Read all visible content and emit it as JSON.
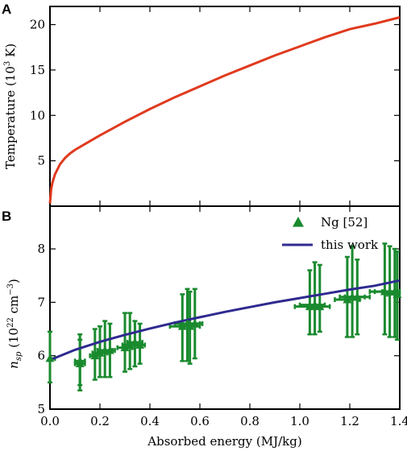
{
  "chart_data": [
    {
      "panel": "A",
      "type": "line",
      "xlabel": "",
      "ylabel": "Temperature (10³ K)",
      "ylabel_main": "Temperature (10",
      "ylabel_sup": "3",
      "ylabel_tail": " K)",
      "xlim": [
        0,
        1.4
      ],
      "ylim": [
        0,
        22
      ],
      "yticks": [
        5,
        10,
        15,
        20
      ],
      "xticks": [
        0.0,
        0.2,
        0.4,
        0.6,
        0.8,
        1.0,
        1.2,
        1.4
      ],
      "series": [
        {
          "color": "#e03a1e",
          "x": [
            0.0,
            0.005,
            0.01,
            0.02,
            0.04,
            0.06,
            0.08,
            0.1,
            0.15,
            0.2,
            0.3,
            0.4,
            0.5,
            0.6,
            0.7,
            0.8,
            0.9,
            1.0,
            1.1,
            1.2,
            1.3,
            1.4
          ],
          "y": [
            0.3,
            1.9,
            2.6,
            3.5,
            4.6,
            5.3,
            5.8,
            6.2,
            7.0,
            7.8,
            9.3,
            10.7,
            12.0,
            13.2,
            14.4,
            15.5,
            16.6,
            17.6,
            18.6,
            19.5,
            20.1,
            20.8
          ]
        }
      ]
    },
    {
      "panel": "B",
      "type": "scatter",
      "xlabel": "Absorbed energy (MJ/kg)",
      "ylabel": "n_sp (10²² cm⁻³)",
      "ylabel_n": "n",
      "ylabel_sub": "sp",
      "ylabel_main": " (10",
      "ylabel_sup1": "22",
      "ylabel_mid": " cm",
      "ylabel_sup2": "−3",
      "ylabel_tail": ")",
      "xlim": [
        0,
        1.4
      ],
      "ylim": [
        5,
        8.8
      ],
      "yticks": [
        5,
        6,
        7,
        8
      ],
      "xticks": [
        0.0,
        0.2,
        0.4,
        0.6,
        0.8,
        1.0,
        1.2,
        1.4
      ],
      "xtick_labels": [
        "0.0",
        "0.2",
        "0.4",
        "0.6",
        "0.8",
        "1.0",
        "1.2",
        "1.4"
      ],
      "legend_position": "top-right",
      "series": [
        {
          "name": "Ng [52]",
          "type": "scatter",
          "marker": "triangle",
          "color": "#1a8a2e",
          "points": [
            {
              "x": 0.0,
              "y": 5.95,
              "ylo": 5.5,
              "yhi": 6.45,
              "xlo": 0.0,
              "xhi": 0.02
            },
            {
              "x": 0.12,
              "y": 5.9,
              "ylo": 5.45,
              "yhi": 6.4,
              "xlo": 0.1,
              "xhi": 0.14
            },
            {
              "x": 0.12,
              "y": 5.85,
              "ylo": 5.35,
              "yhi": 6.3,
              "xlo": 0.1,
              "xhi": 0.14
            },
            {
              "x": 0.18,
              "y": 6.0,
              "ylo": 5.55,
              "yhi": 6.5,
              "xlo": 0.16,
              "xhi": 0.2
            },
            {
              "x": 0.2,
              "y": 6.05,
              "ylo": 5.6,
              "yhi": 6.55,
              "xlo": 0.17,
              "xhi": 0.23
            },
            {
              "x": 0.22,
              "y": 6.1,
              "ylo": 5.6,
              "yhi": 6.65,
              "xlo": 0.19,
              "xhi": 0.25
            },
            {
              "x": 0.24,
              "y": 6.1,
              "ylo": 5.6,
              "yhi": 6.6,
              "xlo": 0.22,
              "xhi": 0.26
            },
            {
              "x": 0.3,
              "y": 6.15,
              "ylo": 5.7,
              "yhi": 6.8,
              "xlo": 0.27,
              "xhi": 0.33
            },
            {
              "x": 0.32,
              "y": 6.2,
              "ylo": 5.75,
              "yhi": 6.8,
              "xlo": 0.29,
              "xhi": 0.35
            },
            {
              "x": 0.34,
              "y": 6.25,
              "ylo": 5.8,
              "yhi": 6.65,
              "xlo": 0.31,
              "xhi": 0.37
            },
            {
              "x": 0.36,
              "y": 6.2,
              "ylo": 5.85,
              "yhi": 6.6,
              "xlo": 0.33,
              "xhi": 0.38
            },
            {
              "x": 0.53,
              "y": 6.55,
              "ylo": 5.9,
              "yhi": 7.15,
              "xlo": 0.48,
              "xhi": 0.58
            },
            {
              "x": 0.55,
              "y": 6.6,
              "ylo": 5.9,
              "yhi": 7.25,
              "xlo": 0.5,
              "xhi": 0.6
            },
            {
              "x": 0.56,
              "y": 6.55,
              "ylo": 5.85,
              "yhi": 7.2,
              "xlo": 0.52,
              "xhi": 0.6
            },
            {
              "x": 0.58,
              "y": 6.6,
              "ylo": 5.95,
              "yhi": 7.25,
              "xlo": 0.55,
              "xhi": 0.61
            },
            {
              "x": 1.04,
              "y": 6.92,
              "ylo": 6.4,
              "yhi": 7.6,
              "xlo": 0.98,
              "xhi": 1.09
            },
            {
              "x": 1.06,
              "y": 6.95,
              "ylo": 6.4,
              "yhi": 7.75,
              "xlo": 1.0,
              "xhi": 1.1
            },
            {
              "x": 1.08,
              "y": 6.92,
              "ylo": 6.45,
              "yhi": 7.7,
              "xlo": 1.03,
              "xhi": 1.12
            },
            {
              "x": 1.19,
              "y": 7.05,
              "ylo": 6.35,
              "yhi": 7.85,
              "xlo": 1.14,
              "xhi": 1.24
            },
            {
              "x": 1.21,
              "y": 7.1,
              "ylo": 6.35,
              "yhi": 8.05,
              "xlo": 1.16,
              "xhi": 1.26
            },
            {
              "x": 1.23,
              "y": 7.1,
              "ylo": 6.4,
              "yhi": 7.8,
              "xlo": 1.18,
              "xhi": 1.28
            },
            {
              "x": 1.34,
              "y": 7.2,
              "ylo": 6.4,
              "yhi": 8.1,
              "xlo": 1.28,
              "xhi": 1.38
            },
            {
              "x": 1.36,
              "y": 7.2,
              "ylo": 6.35,
              "yhi": 8.05,
              "xlo": 1.3,
              "xhi": 1.4
            },
            {
              "x": 1.38,
              "y": 7.2,
              "ylo": 6.35,
              "yhi": 8.0,
              "xlo": 1.33,
              "xhi": 1.4
            },
            {
              "x": 1.39,
              "y": 7.15,
              "ylo": 6.3,
              "yhi": 7.95,
              "xlo": 1.35,
              "xhi": 1.4
            }
          ]
        },
        {
          "name": "this work",
          "type": "line",
          "color": "#2f2a8f",
          "x": [
            0.0,
            0.1,
            0.2,
            0.3,
            0.4,
            0.5,
            0.6,
            0.7,
            0.8,
            0.9,
            1.0,
            1.1,
            1.2,
            1.3,
            1.4
          ],
          "y": [
            5.92,
            6.11,
            6.26,
            6.39,
            6.51,
            6.62,
            6.72,
            6.82,
            6.91,
            7.0,
            7.08,
            7.16,
            7.24,
            7.31,
            7.41
          ]
        }
      ]
    }
  ]
}
